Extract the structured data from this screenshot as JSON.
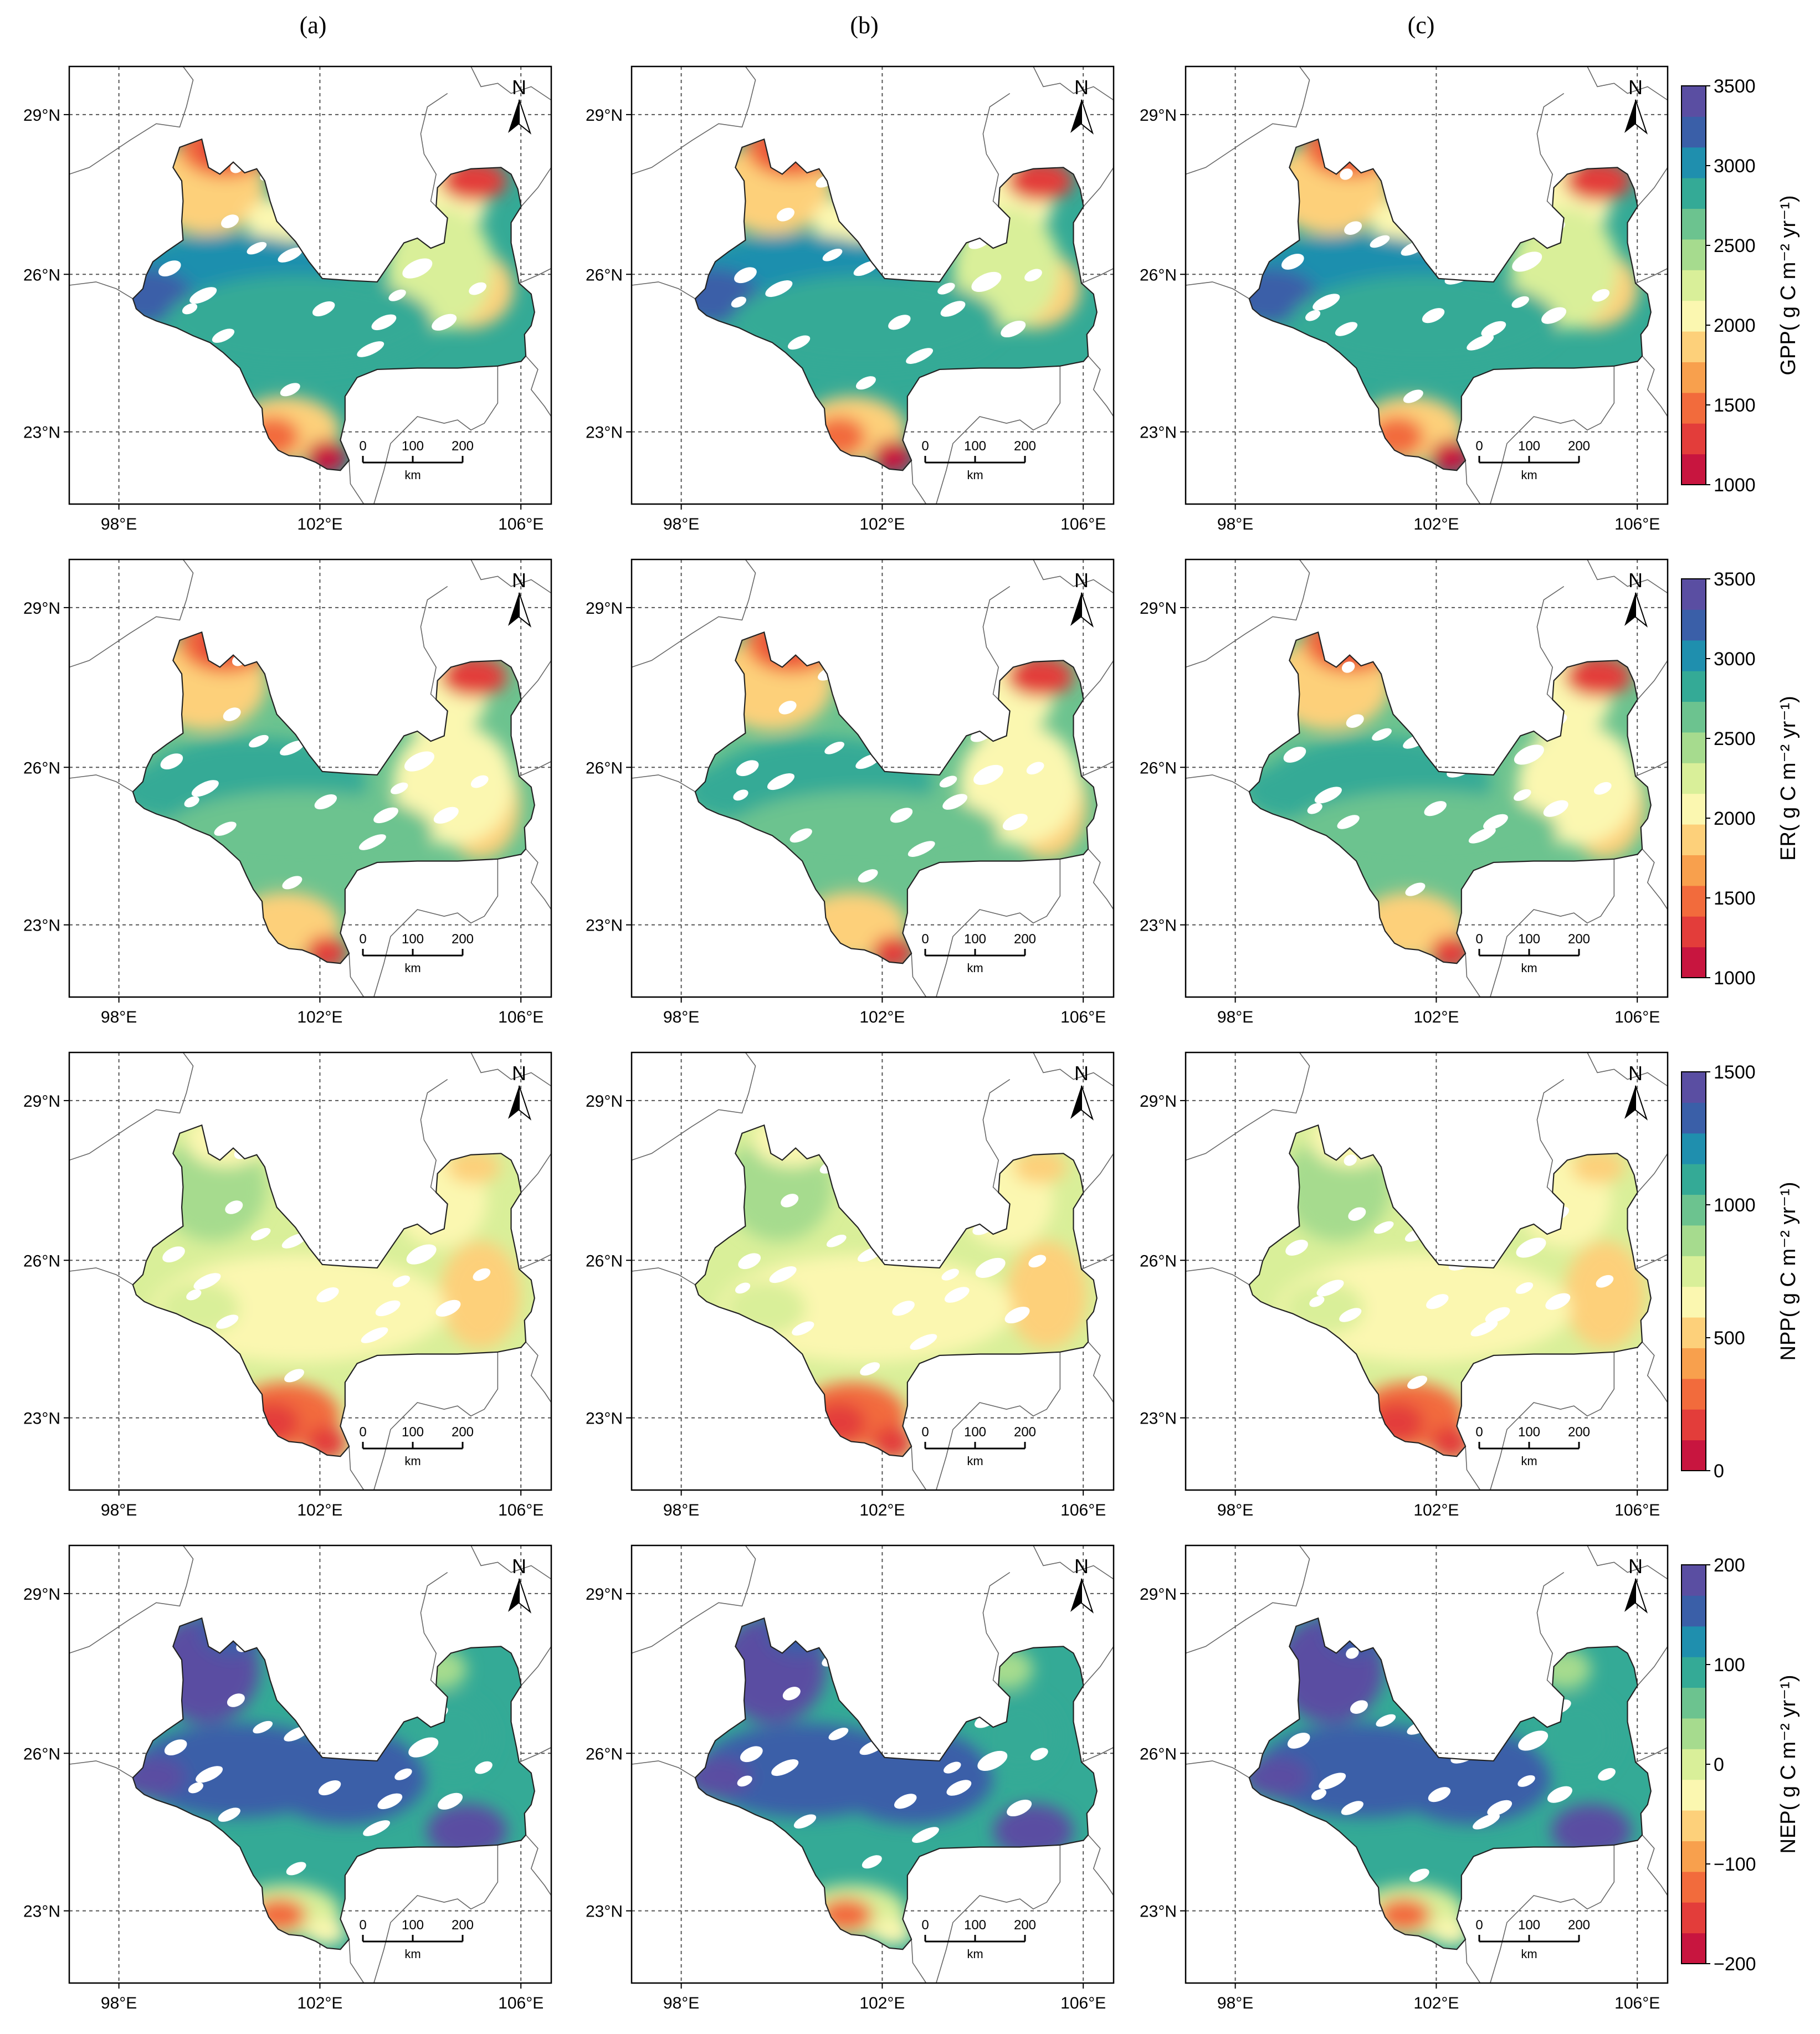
{
  "column_labels": [
    "(a)",
    "(b)",
    "(c)"
  ],
  "lon_ticks": [
    "98°E",
    "102°E",
    "106°E"
  ],
  "lat_ticks": [
    "29°N",
    "26°N",
    "23°N"
  ],
  "north_label": "N",
  "scale_bar": {
    "ticks": [
      "0",
      "100",
      "200"
    ],
    "unit": "km"
  },
  "rows": [
    {
      "variable": "GPP",
      "colorbar_title": "GPP( g C  m⁻² yr⁻¹)",
      "ticks": [
        "1000",
        "1500",
        "2000",
        "2500",
        "3000",
        "3500"
      ],
      "range": [
        1000,
        3500
      ]
    },
    {
      "variable": "ER",
      "colorbar_title": "ER( g C  m⁻² yr⁻¹)",
      "ticks": [
        "1000",
        "1500",
        "2000",
        "2500",
        "3000",
        "3500"
      ],
      "range": [
        1000,
        3500
      ]
    },
    {
      "variable": "NPP",
      "colorbar_title": "NPP( g C  m⁻² yr⁻¹)",
      "ticks": [
        "0",
        "500",
        "1000",
        "1500"
      ],
      "range": [
        0,
        1500
      ]
    },
    {
      "variable": "NEP",
      "colorbar_title": "NEP( g C  m⁻² yr⁻¹)",
      "ticks": [
        "-200",
        "-100",
        "0",
        "100",
        "200"
      ],
      "range": [
        -200,
        200
      ]
    }
  ],
  "colormap": [
    "#c8153f",
    "#e33d3a",
    "#f26b3c",
    "#f8a04d",
    "#fdd07a",
    "#fbf7b0",
    "#d9ef99",
    "#a6db8e",
    "#6cc38f",
    "#34aa96",
    "#1f8fae",
    "#3a5fa8",
    "#5a4ea2"
  ]
}
